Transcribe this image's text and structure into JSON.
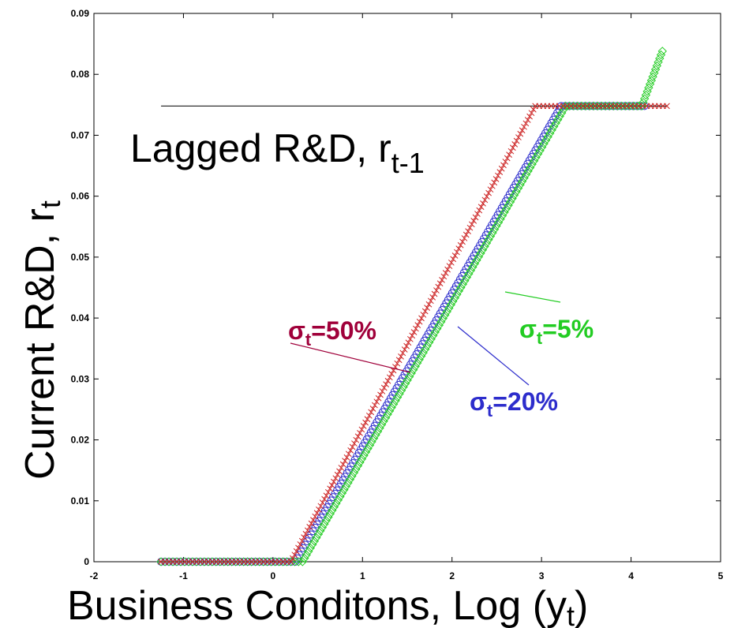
{
  "chart_data": {
    "type": "scatter",
    "xlabel": "Business Conditons, Log (y",
    "xlabel_sub": "t",
    "xlabel_close": ")",
    "ylabel": "Current R&D, r",
    "ylabel_sub": "t",
    "xlim": [
      -2,
      5
    ],
    "ylim": [
      0,
      0.09
    ],
    "x_ticks": [
      "-2",
      "-1",
      "0",
      "1",
      "2",
      "3",
      "4",
      "5"
    ],
    "y_ticks": [
      "0",
      "0.01",
      "0.02",
      "0.03",
      "0.04",
      "0.05",
      "0.06",
      "0.07",
      "0.08",
      "0.09"
    ],
    "grid": false,
    "reference_line": {
      "y": 0.0748,
      "x_from": -1.25,
      "x_to": 4.4,
      "label": "Lagged R&D, r",
      "label_sub": "t-1"
    },
    "series": [
      {
        "label": "σ",
        "label_sub": "t",
        "label_value": "=50%",
        "marker": "x",
        "color": "#cc2222",
        "label_color": "#a0003a",
        "points": [
          [
            -1.25,
            0
          ],
          [
            0.2,
            0
          ],
          [
            2.93,
            0.0748
          ],
          [
            4.4,
            0.0748
          ]
        ]
      },
      {
        "label": "σ",
        "label_sub": "t",
        "label_value": "=20%",
        "marker": "o",
        "color": "#2d2dcc",
        "label_color": "#2d2dcc",
        "points": [
          [
            -1.25,
            0
          ],
          [
            0.25,
            0
          ],
          [
            3.22,
            0.0748
          ],
          [
            4.15,
            0.0748
          ]
        ]
      },
      {
        "label": "σ",
        "label_sub": "t",
        "label_value": "=5%",
        "marker": "square",
        "color": "#22cc22",
        "label_color": "#22cc22",
        "points": [
          [
            -1.25,
            0
          ],
          [
            0.33,
            0
          ],
          [
            3.27,
            0.0748
          ],
          [
            4.12,
            0.0748
          ],
          [
            4.35,
            0.0838
          ]
        ]
      }
    ]
  }
}
